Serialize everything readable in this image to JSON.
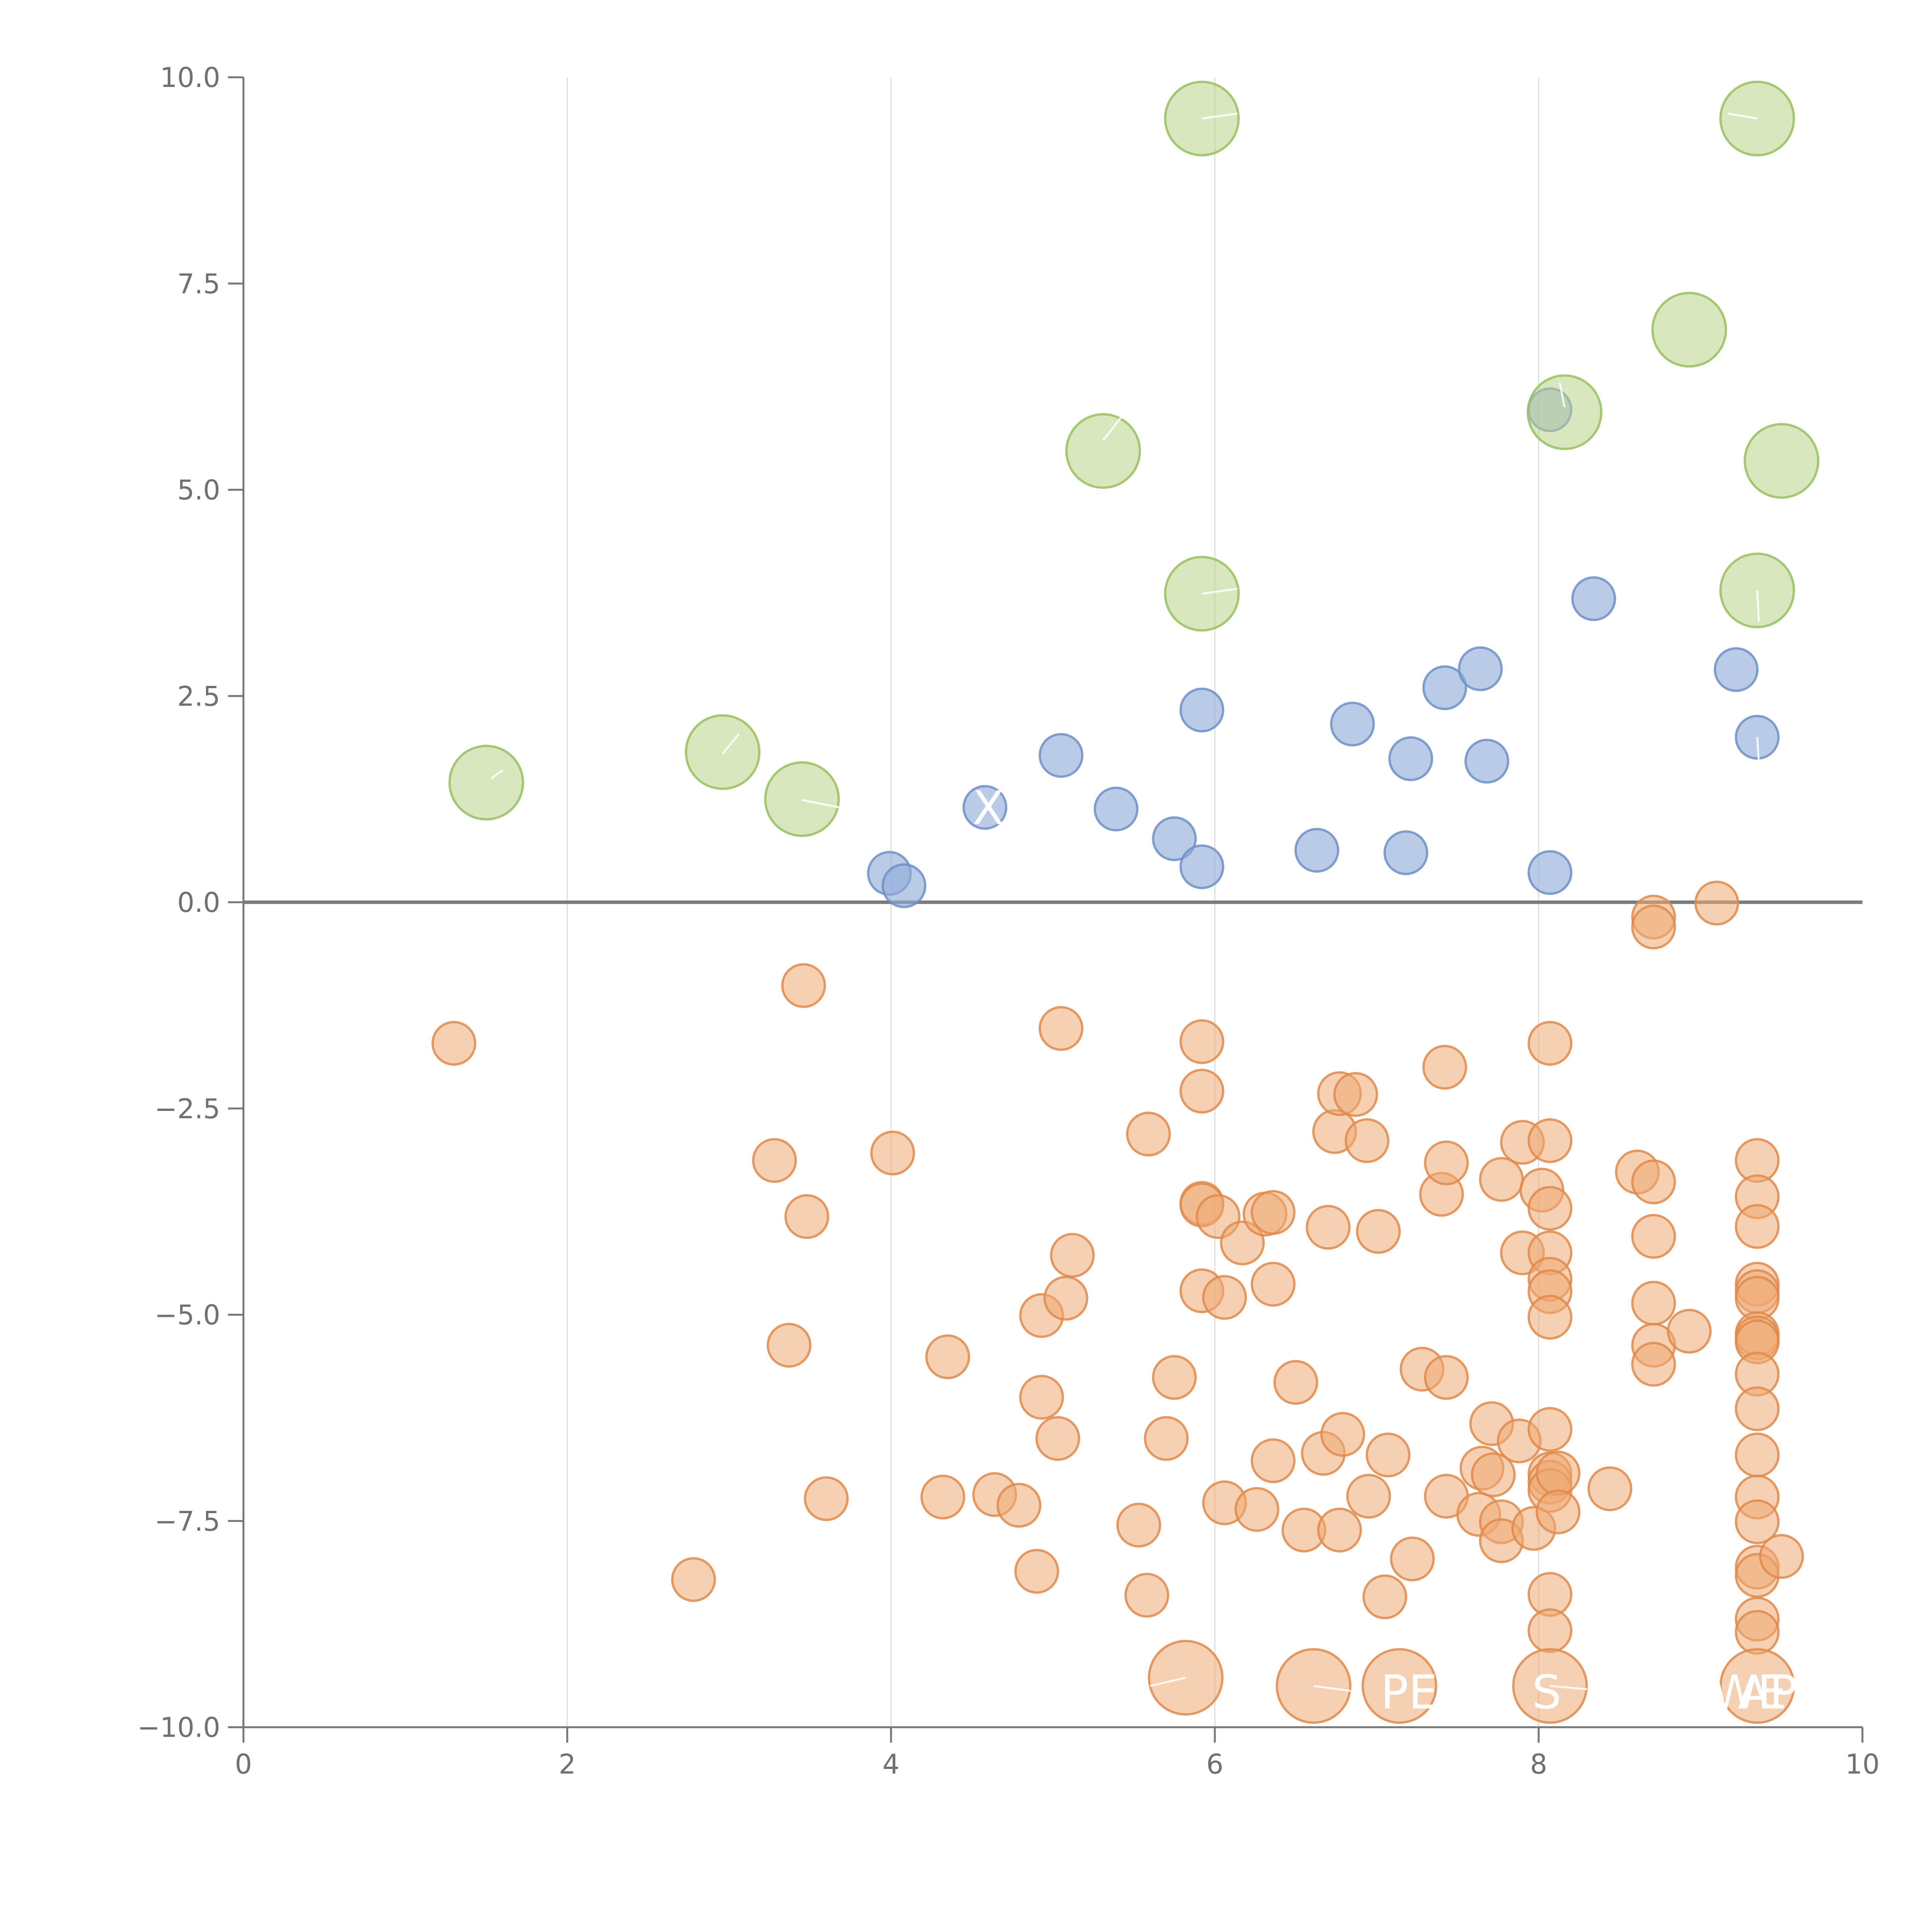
{
  "colors": {
    "background": "#ffffff",
    "positive_small": "#8fabd8",
    "positive_large": "#b9d48a",
    "negative": "#eeaa72",
    "negative_stroke": "#e0894a",
    "positive_small_stroke": "#6f8fc7",
    "positive_large_stroke": "#98bf5e",
    "axis": "#777777",
    "grid": "#dcdcdc",
    "tick_text": "#707070",
    "label_text": "#ffffff"
  },
  "chart_data": {
    "type": "scatter",
    "title": "",
    "xlabel": "",
    "ylabel": "",
    "xlim": [
      0,
      10
    ],
    "ylim": [
      -10,
      10
    ],
    "x_ticks": [
      0,
      2,
      4,
      6,
      8,
      10
    ],
    "x_tick_labels": [
      "0",
      "2",
      "4",
      "6",
      "8",
      "10"
    ],
    "y_ticks": [
      -10,
      -7.5,
      -5,
      -2.5,
      0,
      2.5,
      5,
      7.5,
      10
    ],
    "y_tick_labels": [
      "−10.0",
      "−7.5",
      "−5.0",
      "−2.5",
      "0.0",
      "2.5",
      "5.0",
      "7.5",
      "10.0"
    ],
    "vertical_grid": true,
    "zero_line": true,
    "series": [
      {
        "name": "positive-small",
        "category": "positive_small",
        "size": "small",
        "points": [
          [
            4.58,
            1.15
          ],
          [
            3.99,
            0.35
          ],
          [
            4.08,
            0.2
          ],
          [
            5.05,
            1.78
          ],
          [
            5.39,
            1.13
          ],
          [
            5.75,
            0.77
          ],
          [
            5.92,
            0.43
          ],
          [
            5.92,
            2.33
          ],
          [
            6.63,
            0.63
          ],
          [
            6.85,
            2.16
          ],
          [
            7.18,
            0.6
          ],
          [
            7.21,
            1.74
          ],
          [
            7.42,
            2.6
          ],
          [
            7.64,
            2.83
          ],
          [
            7.68,
            1.71
          ],
          [
            8.07,
            0.36
          ],
          [
            8.07,
            5.97
          ],
          [
            8.34,
            3.68
          ],
          [
            9.22,
            2.82
          ],
          [
            9.35,
            2.0
          ]
        ]
      },
      {
        "name": "positive-large",
        "category": "positive_large",
        "size": "large",
        "points": [
          [
            1.5,
            1.45
          ],
          [
            2.96,
            1.82
          ],
          [
            3.45,
            1.25
          ],
          [
            5.31,
            5.47
          ],
          [
            5.92,
            9.5
          ],
          [
            5.92,
            3.74
          ],
          [
            8.16,
            5.94
          ],
          [
            8.93,
            6.94
          ],
          [
            9.35,
            9.5
          ],
          [
            9.5,
            5.35
          ],
          [
            9.35,
            3.78
          ]
        ]
      },
      {
        "name": "negative-small",
        "category": "negative",
        "size": "small",
        "points": [
          [
            1.3,
            -1.71
          ],
          [
            2.78,
            -8.21
          ],
          [
            3.28,
            -3.13
          ],
          [
            3.37,
            -5.37
          ],
          [
            3.46,
            -1.01
          ],
          [
            3.48,
            -3.81
          ],
          [
            3.6,
            -7.23
          ],
          [
            4.01,
            -3.04
          ],
          [
            4.32,
            -7.21
          ],
          [
            4.35,
            -5.51
          ],
          [
            4.64,
            -7.18
          ],
          [
            4.79,
            -7.31
          ],
          [
            4.9,
            -8.11
          ],
          [
            4.93,
            -6.0
          ],
          [
            4.93,
            -5.01
          ],
          [
            5.03,
            -6.5
          ],
          [
            5.05,
            -1.53
          ],
          [
            5.08,
            -4.8
          ],
          [
            5.12,
            -4.28
          ],
          [
            5.53,
            -7.55
          ],
          [
            5.58,
            -8.4
          ],
          [
            5.59,
            -2.81
          ],
          [
            5.7,
            -6.5
          ],
          [
            5.75,
            -5.76
          ],
          [
            5.92,
            -1.69
          ],
          [
            5.92,
            -2.29
          ],
          [
            5.92,
            -3.65
          ],
          [
            5.92,
            -3.67
          ],
          [
            5.92,
            -4.71
          ],
          [
            6.02,
            -3.81
          ],
          [
            6.06,
            -4.79
          ],
          [
            6.06,
            -7.28
          ],
          [
            6.17,
            -4.13
          ],
          [
            6.26,
            -7.36
          ],
          [
            6.31,
            -3.78
          ],
          [
            6.36,
            -3.76
          ],
          [
            6.36,
            -4.63
          ],
          [
            6.36,
            -6.77
          ],
          [
            6.5,
            -5.82
          ],
          [
            6.55,
            -7.61
          ],
          [
            6.67,
            -6.68
          ],
          [
            6.7,
            -3.94
          ],
          [
            6.74,
            -2.78
          ],
          [
            6.77,
            -2.32
          ],
          [
            6.77,
            -7.61
          ],
          [
            6.79,
            -6.45
          ],
          [
            6.87,
            -2.33
          ],
          [
            6.94,
            -2.89
          ],
          [
            6.95,
            -7.2
          ],
          [
            7.01,
            -3.99
          ],
          [
            7.05,
            -8.42
          ],
          [
            7.07,
            -6.7
          ],
          [
            7.22,
            -7.96
          ],
          [
            7.28,
            -5.66
          ],
          [
            7.4,
            -3.54
          ],
          [
            7.42,
            -2.0
          ],
          [
            7.43,
            -3.16
          ],
          [
            7.43,
            -5.76
          ],
          [
            7.43,
            -7.2
          ],
          [
            7.63,
            -7.42
          ],
          [
            7.65,
            -6.86
          ],
          [
            7.71,
            -6.32
          ],
          [
            7.72,
            -6.94
          ],
          [
            7.77,
            -3.36
          ],
          [
            7.77,
            -7.51
          ],
          [
            7.77,
            -7.74
          ],
          [
            7.88,
            -6.53
          ],
          [
            7.9,
            -2.91
          ],
          [
            7.9,
            -4.25
          ],
          [
            7.97,
            -7.59
          ],
          [
            8.02,
            -3.49
          ],
          [
            8.07,
            -1.71
          ],
          [
            8.07,
            -2.89
          ],
          [
            8.07,
            -3.71
          ],
          [
            8.07,
            -4.25
          ],
          [
            8.07,
            -4.57
          ],
          [
            8.07,
            -4.72
          ],
          [
            8.07,
            -5.03
          ],
          [
            8.07,
            -6.39
          ],
          [
            8.07,
            -6.93
          ],
          [
            8.07,
            -7.03
          ],
          [
            8.07,
            -7.13
          ],
          [
            8.07,
            -8.39
          ],
          [
            8.07,
            -8.83
          ],
          [
            8.12,
            -6.92
          ],
          [
            8.12,
            -7.39
          ],
          [
            8.44,
            -7.11
          ],
          [
            8.61,
            -3.27
          ],
          [
            8.71,
            -0.18
          ],
          [
            8.71,
            -0.3
          ],
          [
            8.71,
            -3.39
          ],
          [
            8.71,
            -4.05
          ],
          [
            8.71,
            -4.86
          ],
          [
            8.71,
            -5.37
          ],
          [
            8.71,
            -5.6
          ],
          [
            8.93,
            -5.2
          ],
          [
            9.1,
            -0.01
          ],
          [
            9.35,
            -3.13
          ],
          [
            9.35,
            -3.57
          ],
          [
            9.35,
            -3.93
          ],
          [
            9.35,
            -4.63
          ],
          [
            9.35,
            -4.72
          ],
          [
            9.35,
            -4.8
          ],
          [
            9.35,
            -5.23
          ],
          [
            9.35,
            -5.28
          ],
          [
            9.35,
            -5.33
          ],
          [
            9.35,
            -5.72
          ],
          [
            9.35,
            -6.14
          ],
          [
            9.35,
            -6.7
          ],
          [
            9.35,
            -7.21
          ],
          [
            9.35,
            -7.51
          ],
          [
            9.35,
            -8.06
          ],
          [
            9.35,
            -8.16
          ],
          [
            9.35,
            -8.69
          ],
          [
            9.35,
            -8.85
          ],
          [
            9.5,
            -7.93
          ]
        ]
      },
      {
        "name": "negative-large",
        "category": "negative",
        "size": "large",
        "points": [
          [
            5.82,
            -9.4
          ],
          [
            6.61,
            -9.5
          ],
          [
            7.14,
            -9.5
          ],
          [
            8.07,
            -9.5
          ],
          [
            9.35,
            -9.5
          ]
        ]
      }
    ],
    "labels": [
      {
        "text": "X",
        "x": 4.6,
        "y": 1.1,
        "lx": 4.63,
        "ly": 1.12,
        "clipped": false
      },
      {
        "text": "PEC",
        "x": 7.3,
        "y": -9.62,
        "lx": 6.65,
        "ly": -9.52,
        "clipped": true
      },
      {
        "text": "S",
        "x": 8.05,
        "y": -9.62,
        "lx": 8.3,
        "ly": -9.52,
        "clipped": true
      },
      {
        "text": "WE",
        "x": 9.3,
        "y": -9.62,
        "lx": 9.05,
        "ly": -9.5,
        "clipped": true
      },
      {
        "text": "APP",
        "x": 9.5,
        "y": -9.62,
        "lx": 9.35,
        "ly": -9.55,
        "clipped": true
      }
    ],
    "leader_lines": [
      {
        "x1": 1.6,
        "y1": 1.6,
        "x2": 1.53,
        "y2": 1.5
      },
      {
        "x1": 3.06,
        "y1": 2.04,
        "x2": 2.96,
        "y2": 1.8
      },
      {
        "x1": 3.45,
        "y1": 1.24,
        "x2": 3.68,
        "y2": 1.15
      },
      {
        "x1": 5.31,
        "y1": 5.6,
        "x2": 5.43,
        "y2": 5.9
      },
      {
        "x1": 5.92,
        "y1": 9.5,
        "x2": 6.14,
        "y2": 9.56
      },
      {
        "x1": 5.92,
        "y1": 3.74,
        "x2": 6.14,
        "y2": 3.8
      },
      {
        "x1": 8.16,
        "y1": 6.0,
        "x2": 8.13,
        "y2": 6.3
      },
      {
        "x1": 9.35,
        "y1": 9.5,
        "x2": 9.17,
        "y2": 9.56
      },
      {
        "x1": 9.35,
        "y1": 3.78,
        "x2": 9.36,
        "y2": 3.4
      },
      {
        "x1": 9.35,
        "y1": 2.0,
        "x2": 9.36,
        "y2": 1.7
      },
      {
        "x1": 5.82,
        "y1": -9.4,
        "x2": 5.6,
        "y2": -9.5
      },
      {
        "x1": 6.61,
        "y1": -9.5,
        "x2": 6.84,
        "y2": -9.56
      },
      {
        "x1": 8.07,
        "y1": -9.5,
        "x2": 8.3,
        "y2": -9.54
      }
    ]
  }
}
